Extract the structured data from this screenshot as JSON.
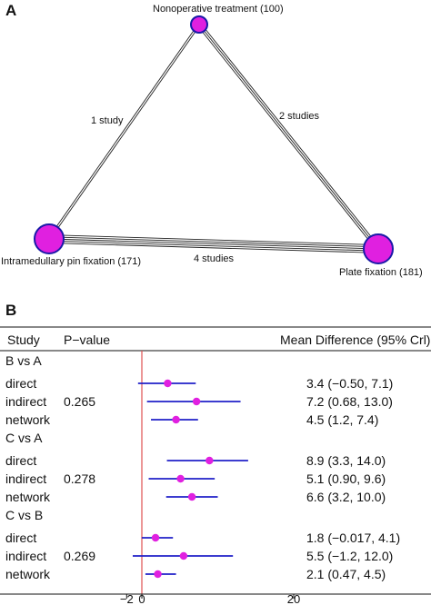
{
  "panel_a": {
    "label": "A",
    "nodes": [
      {
        "id": "nonop",
        "label": "Nonoperative treatment (100)",
        "color": "#e020e0"
      },
      {
        "id": "pin",
        "label": "Intramedullary pin fixation (171)",
        "color": "#e020e0"
      },
      {
        "id": "plate",
        "label": "Plate fixation (181)",
        "color": "#e020e0"
      }
    ],
    "edges": [
      {
        "from": "nonop",
        "to": "pin",
        "label": "1 study",
        "studies": 1
      },
      {
        "from": "nonop",
        "to": "plate",
        "label": "2 studies",
        "studies": 2
      },
      {
        "from": "pin",
        "to": "plate",
        "label": "4 studies",
        "studies": 4
      }
    ]
  },
  "panel_b": {
    "label": "B",
    "headers": {
      "study": "Study",
      "pvalue": "P−value",
      "md": "Mean Difference (95% Crl)"
    },
    "colors": {
      "point": "#e020e0",
      "ci": "#2020c8",
      "ref_line": "#e05050"
    },
    "groups": [
      {
        "title": "B vs A",
        "pvalue": "0.265",
        "rows": [
          {
            "name": "direct",
            "est": 3.4,
            "lo": -0.5,
            "hi": 7.1,
            "text": "3.4 (−0.50, 7.1)"
          },
          {
            "name": "indirect",
            "est": 7.2,
            "lo": 0.68,
            "hi": 13.0,
            "text": "7.2 (0.68,   13.0)"
          },
          {
            "name": "network",
            "est": 4.5,
            "lo": 1.2,
            "hi": 7.4,
            "text": "4.5 (1.2, 7.4)"
          }
        ]
      },
      {
        "title": "C vs A",
        "pvalue": "0.278",
        "rows": [
          {
            "name": "direct",
            "est": 8.9,
            "lo": 3.3,
            "hi": 14.0,
            "text": "8.9 (3.3, 14.0)"
          },
          {
            "name": "indirect",
            "est": 5.1,
            "lo": 0.9,
            "hi": 9.6,
            "text": "5.1 (0.90, 9.6)"
          },
          {
            "name": "network",
            "est": 6.6,
            "lo": 3.2,
            "hi": 10.0,
            "text": "6.6 (3.2, 10.0)"
          }
        ]
      },
      {
        "title": "C vs B",
        "pvalue": "0.269",
        "rows": [
          {
            "name": "direct",
            "est": 1.8,
            "lo": -0.017,
            "hi": 4.1,
            "text": "1.8 (−0.017, 4.1)"
          },
          {
            "name": "indirect",
            "est": 5.5,
            "lo": -1.2,
            "hi": 12.0,
            "text": "5.5 (−1.2, 12.0)"
          },
          {
            "name": "network",
            "est": 2.1,
            "lo": 0.47,
            "hi": 4.5,
            "text": "2.1 (0.47, 4.5)"
          }
        ]
      }
    ],
    "axis": {
      "ticks": [
        -2,
        0,
        20
      ],
      "tick_labels": [
        "−2",
        "0",
        "20"
      ],
      "ref_value": 0
    }
  }
}
